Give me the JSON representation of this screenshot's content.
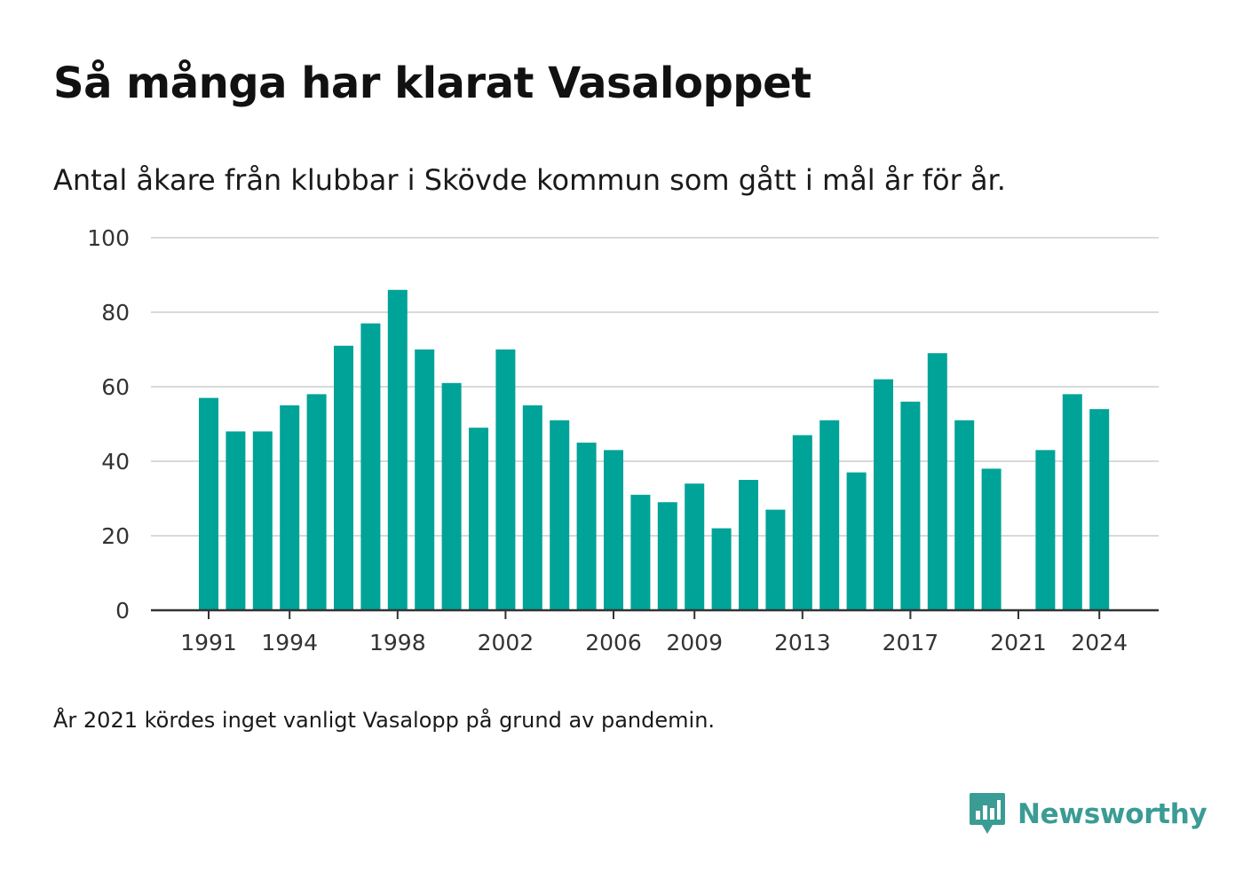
{
  "title": "Så många har klarat Vasaloppet",
  "subtitle": "Antal åkare från klubbar i Skövde kommun som gått i mål år för år.",
  "note": "År 2021 kördes inget vanligt Vasalopp på grund av pandemin.",
  "brand": {
    "name": "Newsworthy",
    "icon": "newsworthy-logo-icon",
    "color": "#3a9c94"
  },
  "colors": {
    "bar": "#00a398",
    "grid": "#d9d9d9",
    "axis": "#333333"
  },
  "chart_data": {
    "type": "bar",
    "categories": [
      1991,
      1992,
      1993,
      1994,
      1995,
      1996,
      1997,
      1998,
      1999,
      2000,
      2001,
      2002,
      2003,
      2004,
      2005,
      2006,
      2007,
      2008,
      2009,
      2010,
      2011,
      2012,
      2013,
      2014,
      2015,
      2016,
      2017,
      2018,
      2019,
      2020,
      2021,
      2022,
      2023,
      2024
    ],
    "values": [
      57,
      48,
      48,
      55,
      58,
      71,
      77,
      86,
      70,
      61,
      49,
      70,
      55,
      51,
      45,
      43,
      31,
      29,
      34,
      22,
      35,
      27,
      47,
      51,
      37,
      62,
      56,
      69,
      51,
      38,
      null,
      43,
      58,
      54
    ],
    "x_tick_labels": [
      "1991",
      "1994",
      "1998",
      "2002",
      "2006",
      "2009",
      "2013",
      "2017",
      "2021",
      "2024"
    ],
    "y_ticks": [
      0,
      20,
      40,
      60,
      80,
      100
    ],
    "ylim": [
      0,
      100
    ],
    "xlabel": "",
    "ylabel": "",
    "grid": true,
    "legend": "none"
  }
}
